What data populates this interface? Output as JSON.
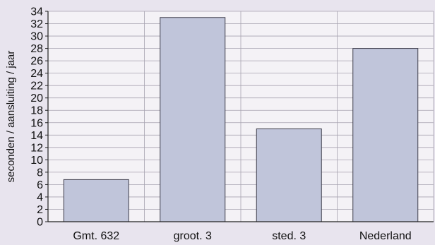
{
  "chart_data": {
    "type": "bar",
    "categories": [
      "Gmt. 632",
      "groot. 3",
      "sted. 3",
      "Nederland"
    ],
    "values": [
      6.8,
      33,
      15,
      28
    ],
    "title": "",
    "xlabel": "",
    "ylabel": "seconden / aansluiting / jaar",
    "ylim": [
      0,
      34
    ],
    "yticks": [
      0,
      2,
      4,
      6,
      8,
      10,
      12,
      14,
      16,
      18,
      20,
      22,
      24,
      26,
      28,
      30,
      32,
      34
    ],
    "grid": true,
    "legend": "none",
    "colors": {
      "background": "#e8e4ee",
      "plot_background": "#f4f2f6",
      "bar_fill": "#c0c5da",
      "bar_stroke": "#3d3d4a",
      "grid": "#a7a3b0",
      "axis": "#222222"
    }
  }
}
